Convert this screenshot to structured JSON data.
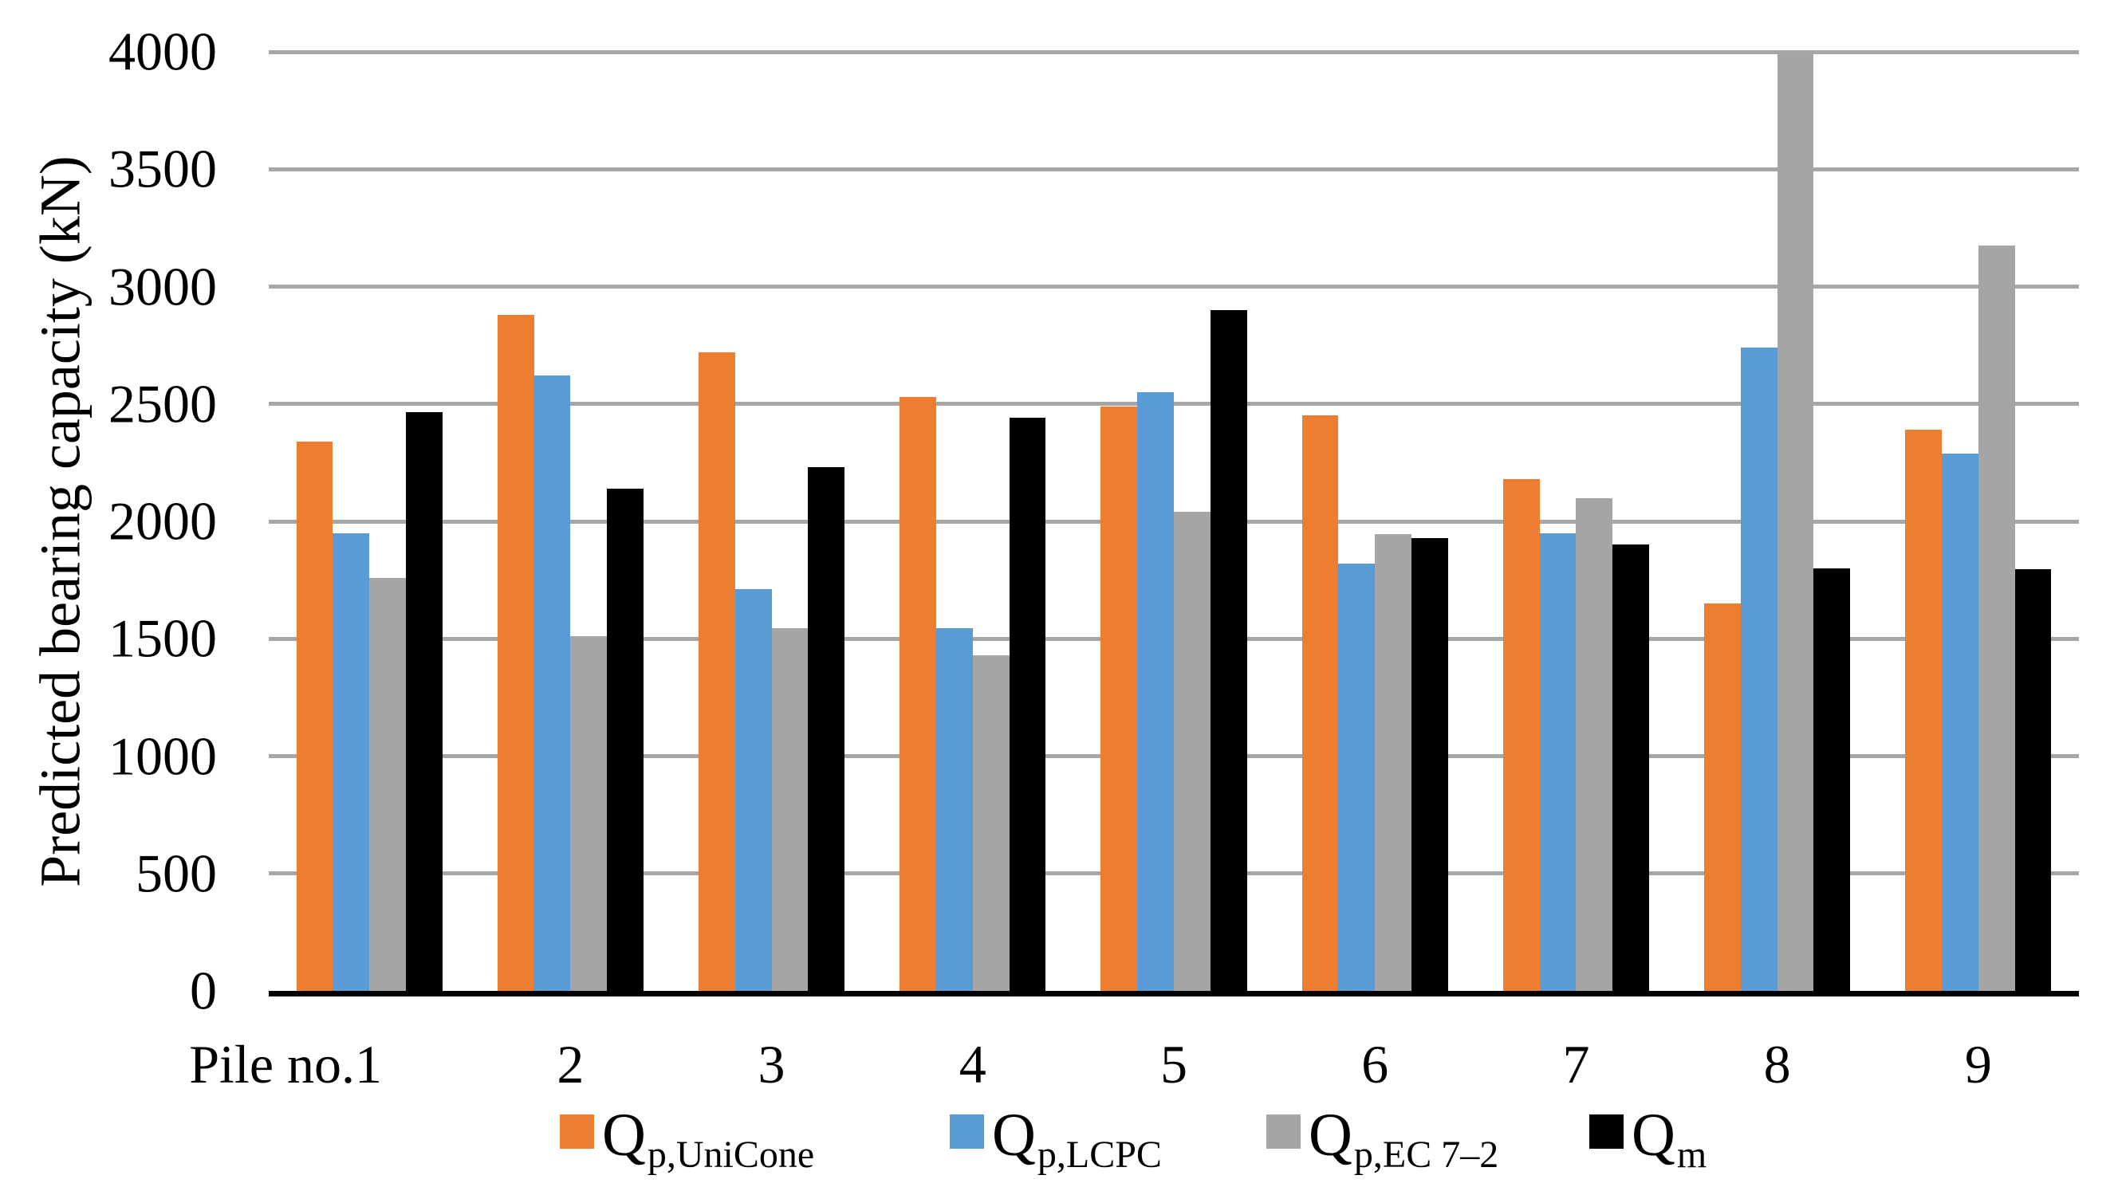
{
  "chart_data": {
    "type": "bar",
    "title": "",
    "xlabel": "",
    "ylabel": "Predicted bearing capacity (kN)",
    "ylim": [
      0,
      4000
    ],
    "ytick_step": 500,
    "yticks": [
      "0",
      "500",
      "1000",
      "1500",
      "2000",
      "2500",
      "3000",
      "3500",
      "4000"
    ],
    "grid": "horizontal",
    "legend_position": "bottom",
    "categories": [
      "Pile no.1",
      "2",
      "3",
      "4",
      "5",
      "6",
      "7",
      "8",
      "9"
    ],
    "series": [
      {
        "id": "qp-unicone",
        "name_main": "Q",
        "name_sub": "p,UniCone",
        "color": "#ED7D31",
        "values": [
          2340,
          2880,
          2720,
          2530,
          2490,
          2450,
          2180,
          1650,
          2390
        ]
      },
      {
        "id": "qp-lcpc",
        "name_main": "Q",
        "name_sub": "p,LCPC",
        "color": "#5B9BD5",
        "values": [
          1950,
          2620,
          1710,
          1545,
          2550,
          1820,
          1950,
          2740,
          2290
        ]
      },
      {
        "id": "qp-ec7-2",
        "name_main": "Q",
        "name_sub": "p,EC 7–2",
        "color": "#A5A5A5",
        "values": [
          1760,
          1510,
          1545,
          1430,
          2040,
          1945,
          2100,
          4000,
          3175
        ]
      },
      {
        "id": "qm",
        "name_main": "Q",
        "name_sub": "m",
        "color": "#000000",
        "values": [
          2465,
          2140,
          2230,
          2440,
          2900,
          1930,
          1900,
          1800,
          1795
        ]
      }
    ],
    "colors": {
      "gridline": "#A6A6A6",
      "axis_line": "#000000",
      "text": "#000000",
      "background": "#FFFFFF"
    }
  }
}
